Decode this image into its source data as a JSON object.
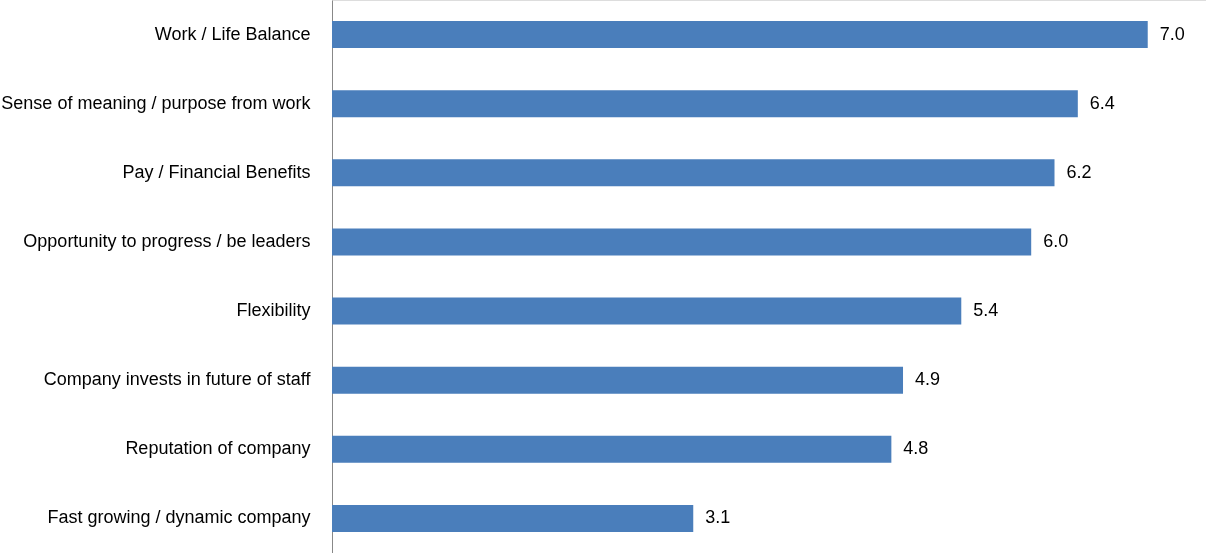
{
  "chart_data": {
    "type": "bar",
    "orientation": "horizontal",
    "categories": [
      "Work / Life Balance",
      "Sense of meaning / purpose from work",
      "Pay / Financial Benefits",
      "Opportunity to progress / be leaders",
      "Flexibility",
      "Company invests in future of staff",
      "Reputation of company",
      "Fast growing / dynamic company"
    ],
    "values": [
      7.0,
      6.4,
      6.2,
      6.0,
      5.4,
      4.9,
      4.8,
      3.1
    ],
    "value_labels": [
      "7.0",
      "6.4",
      "6.2",
      "6.0",
      "5.4",
      "4.9",
      "4.8",
      "3.1"
    ],
    "color": "#4a7ebb",
    "xlim": [
      0,
      7.5
    ],
    "tick_labels": "y",
    "grid": false
  }
}
